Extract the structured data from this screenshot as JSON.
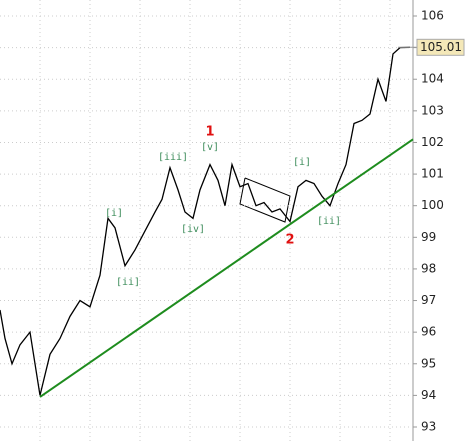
{
  "chart_data": {
    "type": "line",
    "x": [
      0,
      5,
      12,
      20,
      30,
      40,
      50,
      60,
      70,
      80,
      90,
      100,
      108,
      115,
      125,
      135,
      145,
      155,
      162,
      170,
      178,
      185,
      193,
      200,
      210,
      218,
      225,
      232,
      240,
      248,
      256,
      264,
      272,
      280,
      290,
      298,
      306,
      314,
      322,
      330,
      338,
      346,
      354,
      362,
      370,
      378,
      386,
      393,
      400,
      410
    ],
    "series": [
      {
        "color": "#000000",
        "values": [
          96.7,
          95.8,
          95.0,
          95.6,
          96.0,
          94.0,
          95.3,
          95.8,
          96.5,
          97.0,
          96.8,
          97.8,
          99.6,
          99.3,
          98.1,
          98.6,
          99.2,
          99.8,
          100.2,
          101.2,
          100.5,
          99.8,
          99.6,
          100.5,
          101.3,
          100.8,
          100.0,
          101.3,
          100.6,
          100.7,
          100.0,
          100.1,
          99.8,
          99.9,
          99.5,
          100.6,
          100.8,
          100.7,
          100.3,
          100.0,
          100.7,
          101.3,
          102.6,
          102.7,
          102.9,
          104.0,
          103.3,
          104.8,
          105.0,
          105.01
        ]
      }
    ],
    "trendline": {
      "color": "#1e8c1e",
      "x": [
        40,
        413
      ],
      "values": [
        93.95,
        102.1
      ]
    },
    "last_value": 105.01,
    "annotations": [
      {
        "text": "[i]",
        "color": "#3c8c5a"
      },
      {
        "text": "[ii]",
        "color": "#3c8c5a"
      },
      {
        "text": "[iii]",
        "color": "#3c8c5a"
      },
      {
        "text": "[iv]",
        "color": "#3c8c5a"
      },
      {
        "text": "[v]",
        "color": "#3c8c5a"
      },
      {
        "text": "1",
        "color": "#e01010"
      },
      {
        "text": "2",
        "color": "#e01010"
      },
      {
        "text": "[i]",
        "color": "#3c8c5a"
      },
      {
        "text": "[ii]",
        "color": "#3c8c5a"
      }
    ],
    "xlim": [
      0,
      413
    ],
    "ylim": [
      93,
      106
    ],
    "yticks": [
      93,
      94,
      95,
      96,
      97,
      98,
      99,
      100,
      101,
      102,
      103,
      104,
      105,
      106
    ],
    "grid": true
  }
}
